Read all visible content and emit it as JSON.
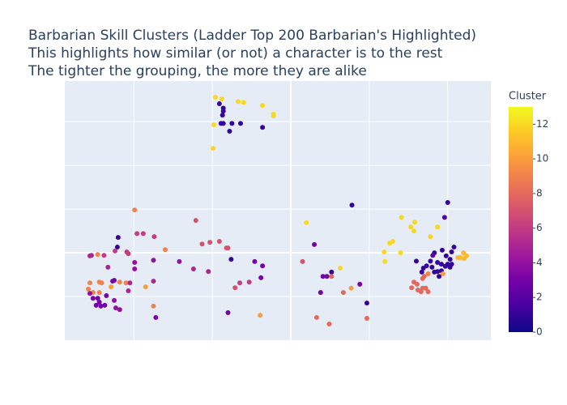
{
  "chart_data": {
    "type": "scatter",
    "title": "Barbarian Skill Clusters (Ladder Top 200 Barbarian's Highlighted)",
    "subtitle": [
      "This highlights how similar (or not) a character is to the rest",
      "The tighter the grouping, the more they are alike"
    ],
    "xlim": [
      -2.88,
      2.55
    ],
    "ylim": [
      -2,
      3.93
    ],
    "xticks": [
      -2,
      -1,
      0,
      1,
      2
    ],
    "yticks": [
      -1,
      0,
      1,
      2,
      3
    ],
    "show_tick_labels": false,
    "grid": true,
    "zeroline": true,
    "colorbar_title": "Cluster",
    "clim": [
      0,
      13
    ],
    "colorbar_ticks": [
      0,
      2,
      4,
      6,
      8,
      10,
      12
    ],
    "colorscale": [
      "#0d0887",
      "#46039f",
      "#7201a8",
      "#9c179e",
      "#bd3786",
      "#d8576b",
      "#ed7953",
      "#fb9f3a",
      "#fdca26",
      "#f0f921"
    ],
    "x": [
      -0.96,
      -0.88,
      -0.91,
      -0.86,
      -0.86,
      -0.87,
      -0.89,
      -0.86,
      -0.75,
      -0.64,
      -0.98,
      -0.78,
      -0.67,
      -0.6,
      -0.36,
      -0.22,
      -0.22,
      -0.36,
      -0.99,
      -1.99,
      -2.2,
      -1.96,
      -1.88,
      -1.74,
      -2.21,
      -2.46,
      -2.54,
      -2.56,
      -2.38,
      -2.24,
      -2.09,
      -2.07,
      -1.6,
      -1.99,
      -1.99,
      -1.75,
      -1.42,
      -1.21,
      -1.13,
      -1.03,
      -0.91,
      -0.82,
      -0.8,
      -0.76,
      -0.46,
      -0.36,
      -1.24,
      -1.05,
      -2.33,
      -2.56,
      -2.44,
      -2.41,
      -2.25,
      -2.27,
      -2.18,
      -2.1,
      -2.05,
      -1.75,
      -1.85,
      -2.29,
      -2.58,
      -2.52,
      -2.56,
      -2.44,
      -2.07,
      -2.52,
      -2.46,
      -2.35,
      -2.44,
      -2.48,
      -2.42,
      -2.37,
      -2.25,
      -2.23,
      -2.18,
      -1.75,
      -1.72,
      -0.8,
      -0.71,
      -0.65,
      -0.53,
      -0.38,
      -0.39,
      0.2,
      0.3,
      0.15,
      0.52,
      0.41,
      0.46,
      0.52,
      0.63,
      0.78,
      0.88,
      0.77,
      0.67,
      0.38,
      0.97,
      0.33,
      0.49,
      0.97,
      2.0,
      1.96,
      1.41,
      1.58,
      1.53,
      1.57,
      1.87,
      1.78,
      1.3,
      1.26,
      1.19,
      1.4,
      1.2,
      1.6,
      1.83,
      1.81,
      1.93,
      2.08,
      2.05,
      1.98,
      2.03,
      1.78,
      1.87,
      1.92,
      1.73,
      1.69,
      1.8,
      1.97,
      2.03,
      2.0,
      2.05,
      2.13,
      2.2,
      2.24,
      2.21,
      2.16,
      1.67,
      1.75,
      1.83,
      1.87,
      1.92,
      1.94,
      1.89,
      1.7,
      1.68,
      1.57,
      1.61,
      1.54,
      1.68,
      1.72,
      1.66,
      1.75,
      1.62
    ],
    "y": [
      3.56,
      3.52,
      3.41,
      3.31,
      3.24,
      3.15,
      2.96,
      2.96,
      2.96,
      2.96,
      2.93,
      2.78,
      3.46,
      3.44,
      3.37,
      3.17,
      3.13,
      2.87,
      2.39,
      0.98,
      0.35,
      0.44,
      0.44,
      0.37,
      0.13,
      -0.04,
      -0.06,
      -0.07,
      -0.06,
      0.04,
      0.02,
      -0.02,
      0.07,
      -0.22,
      -0.37,
      -0.17,
      -0.2,
      0.74,
      0.2,
      0.24,
      0.26,
      0.11,
      0.11,
      -0.15,
      -0.2,
      -0.3,
      -0.37,
      -0.43,
      -0.33,
      -0.69,
      -0.67,
      -0.69,
      -0.63,
      -0.65,
      -0.67,
      -0.69,
      -0.69,
      -0.65,
      -0.78,
      -0.78,
      -0.83,
      -0.91,
      -0.93,
      -0.91,
      -0.87,
      -1.04,
      -1.04,
      -0.98,
      -1.13,
      -1.2,
      -1.22,
      -1.2,
      -1.09,
      -1.26,
      -1.3,
      -1.22,
      -1.48,
      -1.37,
      -0.8,
      -0.69,
      -0.67,
      -0.57,
      -1.43,
      0.69,
      0.19,
      -0.2,
      -0.44,
      -0.54,
      -0.54,
      -0.54,
      -0.35,
      1.09,
      -0.72,
      -0.81,
      -0.91,
      -0.91,
      -1.15,
      -1.48,
      -1.63,
      -1.5,
      1.15,
      0.81,
      0.81,
      0.7,
      0.59,
      0.5,
      0.59,
      0.37,
      0.26,
      0.22,
      0.02,
      0.0,
      -0.2,
      -0.19,
      0.0,
      -0.06,
      0.06,
      0.13,
      0.02,
      -0.07,
      -0.15,
      -0.19,
      -0.22,
      -0.26,
      -0.3,
      -0.35,
      -0.33,
      -0.31,
      -0.33,
      -0.26,
      -0.26,
      -0.11,
      0.0,
      -0.07,
      -0.13,
      -0.11,
      -0.44,
      -0.48,
      -0.44,
      -0.43,
      -0.41,
      -0.48,
      -0.54,
      -0.54,
      -0.59,
      -0.67,
      -0.72,
      -0.8,
      -0.81,
      -0.81,
      -0.89,
      -0.89,
      -0.85
    ],
    "color_values": [
      12,
      12,
      1,
      1,
      1,
      1,
      1,
      1,
      1,
      1,
      12,
      1,
      12,
      12,
      12,
      12,
      12,
      1,
      12,
      9,
      1,
      6,
      6,
      6,
      1,
      9,
      5,
      5,
      6,
      6,
      6,
      6,
      9,
      4,
      4,
      4,
      4,
      7,
      7,
      7,
      7,
      7,
      7,
      1,
      3,
      3,
      5,
      5,
      5,
      9,
      9,
      9,
      3,
      3,
      9,
      9,
      5,
      5,
      10,
      10,
      9,
      9,
      4,
      9,
      5,
      3,
      3,
      3,
      3,
      3,
      3,
      3,
      4,
      4,
      4,
      9,
      3,
      3,
      7,
      6,
      6,
      3,
      10,
      12,
      3,
      7,
      1,
      3,
      3,
      8,
      12,
      1,
      3,
      10,
      8,
      3,
      1,
      8,
      8,
      8,
      1,
      2,
      12,
      12,
      12,
      12,
      12,
      12,
      12,
      12,
      12,
      12,
      12,
      1,
      1,
      2,
      1,
      1,
      1,
      1,
      1,
      1,
      1,
      1,
      1,
      1,
      1,
      1,
      1,
      1,
      1,
      11,
      11,
      11,
      11,
      11,
      1,
      9,
      1,
      1,
      1,
      10,
      1,
      8,
      8,
      8,
      8,
      8,
      8,
      8,
      8,
      8,
      8
    ]
  }
}
